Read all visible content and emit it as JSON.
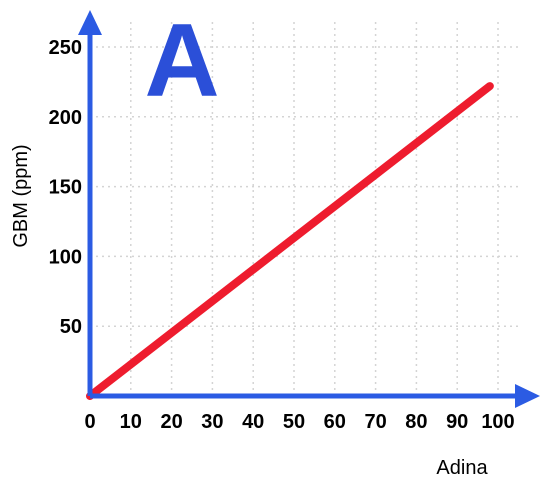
{
  "chart_data": {
    "type": "line",
    "panel_label": "A",
    "xlabel": "Adina",
    "ylabel": "GBM (ppm)",
    "xlim": [
      0,
      100
    ],
    "ylim": [
      0,
      250
    ],
    "x_ticks": [
      "0",
      "10",
      "20",
      "30",
      "40",
      "50",
      "60",
      "70",
      "80",
      "90",
      "100"
    ],
    "y_ticks": [
      "50",
      "100",
      "150",
      "200",
      "250"
    ],
    "grid": true,
    "series": [
      {
        "x": [
          0,
          98
        ],
        "y": [
          0,
          222
        ]
      }
    ],
    "colors": {
      "line": "#ee1c2e",
      "axes": "#2b5be3",
      "panel_label": "#2b4fd8",
      "grid": "#d4d4d4"
    }
  }
}
